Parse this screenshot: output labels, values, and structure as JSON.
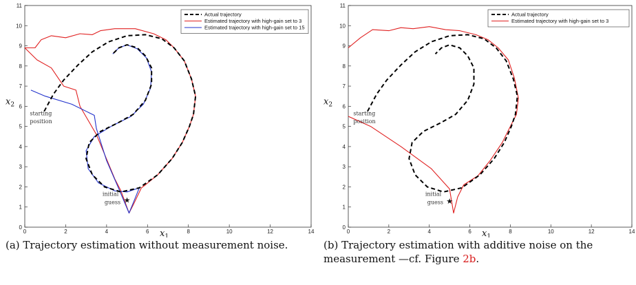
{
  "captions": {
    "a": "(a) Trajectory estimation without measurement noise.",
    "b_prefix": "(b) Trajectory estimation with additive noise on the measurement —cf. Figure ",
    "b_ref": "2b",
    "b_suffix": "."
  },
  "colors": {
    "actual": "#000000",
    "gain3": "#e02020",
    "gain15": "#2233cc"
  },
  "chart_data": [
    {
      "type": "line",
      "panel": "a",
      "xlabel": "x1",
      "ylabel": "x2",
      "xlim": [
        0,
        14
      ],
      "ylim": [
        0,
        11
      ],
      "xticks": [
        0,
        2,
        4,
        6,
        8,
        10,
        12,
        14
      ],
      "yticks": [
        0,
        1,
        2,
        3,
        4,
        5,
        6,
        7,
        8,
        9,
        10,
        11
      ],
      "grid": false,
      "legend": "top-right",
      "annotations": [
        {
          "text": "starting",
          "x": 0.25,
          "y": 5.55
        },
        {
          "text": "position",
          "x": 0.25,
          "y": 5.15
        },
        {
          "text": "initial",
          "x": 3.8,
          "y": 1.55
        },
        {
          "text": "guess",
          "x": 3.9,
          "y": 1.15
        }
      ],
      "initial_guess": [
        5.0,
        1.35
      ],
      "series": [
        {
          "name": "Actual trajectory",
          "style": "dashed",
          "color": "#000000",
          "points": [
            [
              0.95,
              5.75
            ],
            [
              1.4,
              6.6
            ],
            [
              1.9,
              7.3
            ],
            [
              2.6,
              8.05
            ],
            [
              3.3,
              8.7
            ],
            [
              4.1,
              9.2
            ],
            [
              5.0,
              9.5
            ],
            [
              5.9,
              9.55
            ],
            [
              6.7,
              9.35
            ],
            [
              7.3,
              8.9
            ],
            [
              7.8,
              8.25
            ],
            [
              8.15,
              7.35
            ],
            [
              8.35,
              6.5
            ],
            [
              8.25,
              5.6
            ],
            [
              8.05,
              5.0
            ],
            [
              7.7,
              4.2
            ],
            [
              7.2,
              3.4
            ],
            [
              6.5,
              2.6
            ],
            [
              5.6,
              1.95
            ],
            [
              4.7,
              1.75
            ],
            [
              3.9,
              2.0
            ],
            [
              3.3,
              2.6
            ],
            [
              3.0,
              3.4
            ],
            [
              3.15,
              4.2
            ],
            [
              3.7,
              4.75
            ],
            [
              4.6,
              5.2
            ],
            [
              5.3,
              5.6
            ],
            [
              5.9,
              6.3
            ],
            [
              6.2,
              7.1
            ],
            [
              6.2,
              7.9
            ],
            [
              5.9,
              8.5
            ],
            [
              5.5,
              8.9
            ],
            [
              5.0,
              9.05
            ],
            [
              4.6,
              8.9
            ],
            [
              4.3,
              8.6
            ]
          ]
        },
        {
          "name": "Estimated trajectory with high-gain set to 3",
          "style": "solid",
          "color": "#e02020",
          "points": [
            [
              0.0,
              8.9
            ],
            [
              0.5,
              8.9
            ],
            [
              0.8,
              9.3
            ],
            [
              1.3,
              9.5
            ],
            [
              2.0,
              9.4
            ],
            [
              2.7,
              9.6
            ],
            [
              3.3,
              9.55
            ],
            [
              3.7,
              9.75
            ],
            [
              4.4,
              9.85
            ],
            [
              5.4,
              9.85
            ],
            [
              6.3,
              9.6
            ],
            [
              6.9,
              9.3
            ],
            [
              7.3,
              8.9
            ],
            [
              7.8,
              8.25
            ],
            [
              8.15,
              7.35
            ],
            [
              8.35,
              6.5
            ],
            [
              8.25,
              5.6
            ],
            [
              8.05,
              5.0
            ],
            [
              7.7,
              4.2
            ],
            [
              7.2,
              3.4
            ],
            [
              6.5,
              2.6
            ],
            [
              5.9,
              2.1
            ],
            [
              5.7,
              1.95
            ],
            [
              5.3,
              1.1
            ],
            [
              5.1,
              0.7
            ],
            [
              4.7,
              1.8
            ],
            [
              4.4,
              2.4
            ],
            [
              3.5,
              4.6
            ],
            [
              2.7,
              6.0
            ],
            [
              2.5,
              6.8
            ],
            [
              1.9,
              7.0
            ],
            [
              1.3,
              7.9
            ],
            [
              0.6,
              8.3
            ],
            [
              0.0,
              8.9
            ]
          ]
        },
        {
          "name": "Estimated trajectory with high-gain set to 15",
          "style": "solid",
          "color": "#2233cc",
          "points": [
            [
              0.3,
              6.8
            ],
            [
              1.0,
              6.5
            ],
            [
              2.3,
              6.1
            ],
            [
              3.4,
              5.55
            ],
            [
              3.5,
              4.9
            ],
            [
              4.0,
              3.3
            ],
            [
              4.6,
              1.9
            ],
            [
              5.1,
              0.7
            ],
            [
              5.3,
              1.2
            ],
            [
              5.6,
              1.95
            ],
            [
              5.0,
              1.75
            ],
            [
              4.4,
              1.8
            ],
            [
              3.6,
              2.2
            ],
            [
              3.1,
              2.9
            ],
            [
              3.0,
              3.8
            ],
            [
              3.4,
              4.5
            ],
            [
              4.3,
              5.05
            ],
            [
              5.2,
              5.5
            ],
            [
              5.8,
              6.1
            ],
            [
              6.15,
              6.9
            ],
            [
              6.2,
              7.7
            ],
            [
              5.95,
              8.4
            ],
            [
              5.5,
              8.85
            ],
            [
              5.0,
              9.05
            ],
            [
              4.6,
              8.9
            ],
            [
              4.3,
              8.6
            ]
          ]
        }
      ]
    },
    {
      "type": "line",
      "panel": "b",
      "xlabel": "x1",
      "ylabel": "x2",
      "xlim": [
        0,
        14
      ],
      "ylim": [
        0,
        11
      ],
      "xticks": [
        0,
        2,
        4,
        6,
        8,
        10,
        12,
        14
      ],
      "yticks": [
        0,
        1,
        2,
        3,
        4,
        5,
        6,
        7,
        8,
        9,
        10,
        11
      ],
      "grid": false,
      "legend": "top-right",
      "annotations": [
        {
          "text": "starting",
          "x": 0.25,
          "y": 5.55
        },
        {
          "text": "position",
          "x": 0.25,
          "y": 5.15
        },
        {
          "text": "initial",
          "x": 3.8,
          "y": 1.55
        },
        {
          "text": "guess",
          "x": 3.9,
          "y": 1.15
        }
      ],
      "initial_guess": [
        5.0,
        1.3
      ],
      "series": [
        {
          "name": "Actual trajectory",
          "style": "dashed",
          "color": "#000000",
          "points": [
            [
              0.95,
              5.75
            ],
            [
              1.4,
              6.6
            ],
            [
              1.9,
              7.3
            ],
            [
              2.6,
              8.05
            ],
            [
              3.3,
              8.7
            ],
            [
              4.1,
              9.2
            ],
            [
              5.0,
              9.5
            ],
            [
              5.9,
              9.55
            ],
            [
              6.7,
              9.35
            ],
            [
              7.3,
              8.9
            ],
            [
              7.8,
              8.25
            ],
            [
              8.15,
              7.35
            ],
            [
              8.35,
              6.5
            ],
            [
              8.25,
              5.6
            ],
            [
              8.05,
              5.0
            ],
            [
              7.7,
              4.2
            ],
            [
              7.2,
              3.4
            ],
            [
              6.5,
              2.6
            ],
            [
              5.6,
              1.95
            ],
            [
              4.7,
              1.75
            ],
            [
              3.9,
              2.0
            ],
            [
              3.3,
              2.6
            ],
            [
              3.0,
              3.4
            ],
            [
              3.15,
              4.2
            ],
            [
              3.7,
              4.75
            ],
            [
              4.6,
              5.2
            ],
            [
              5.3,
              5.6
            ],
            [
              5.9,
              6.3
            ],
            [
              6.2,
              7.1
            ],
            [
              6.2,
              7.9
            ],
            [
              5.9,
              8.5
            ],
            [
              5.5,
              8.9
            ],
            [
              5.0,
              9.05
            ],
            [
              4.6,
              8.9
            ],
            [
              4.3,
              8.6
            ]
          ]
        },
        {
          "name": "Estimated trajectory with high-gain set to 3",
          "style": "solid",
          "color": "#e02020",
          "points": [
            [
              0.0,
              8.9
            ],
            [
              0.6,
              9.4
            ],
            [
              1.2,
              9.8
            ],
            [
              2.0,
              9.75
            ],
            [
              2.6,
              9.9
            ],
            [
              3.2,
              9.85
            ],
            [
              4.0,
              9.95
            ],
            [
              4.8,
              9.8
            ],
            [
              5.5,
              9.75
            ],
            [
              6.3,
              9.55
            ],
            [
              6.9,
              9.3
            ],
            [
              7.4,
              8.9
            ],
            [
              7.9,
              8.3
            ],
            [
              8.2,
              7.4
            ],
            [
              8.4,
              6.4
            ],
            [
              8.3,
              5.6
            ],
            [
              7.9,
              4.8
            ],
            [
              7.6,
              4.2
            ],
            [
              7.0,
              3.3
            ],
            [
              6.4,
              2.55
            ],
            [
              5.7,
              2.1
            ],
            [
              5.4,
              1.5
            ],
            [
              5.2,
              0.7
            ],
            [
              5.0,
              1.9
            ],
            [
              4.1,
              2.9
            ],
            [
              2.6,
              4.0
            ],
            [
              1.1,
              5.0
            ],
            [
              0.0,
              5.5
            ]
          ]
        }
      ]
    }
  ]
}
